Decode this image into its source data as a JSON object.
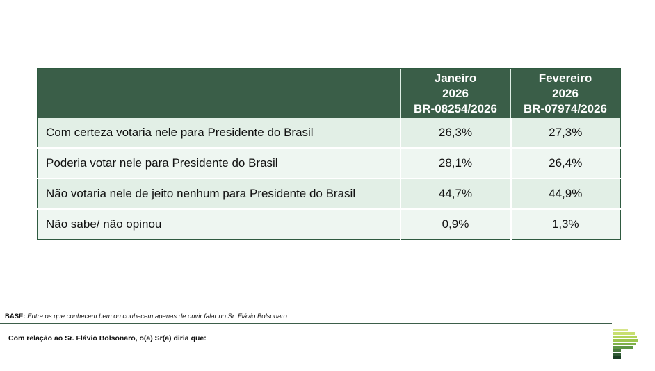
{
  "table": {
    "headers": [
      {
        "line1": "",
        "line2": "",
        "line3": ""
      },
      {
        "line1": "Janeiro",
        "line2": "2026",
        "line3": "BR-08254/2026"
      },
      {
        "line1": "Fevereiro",
        "line2": "2026",
        "line3": "BR-07974/2026"
      }
    ],
    "rows": [
      {
        "label": "Com certeza votaria nele para Presidente do Brasil",
        "jan": "26,3%",
        "fev": "27,3%"
      },
      {
        "label": "Poderia votar nele para Presidente do Brasil",
        "jan": "28,1%",
        "fev": "26,4%"
      },
      {
        "label": "Não votaria nele de jeito nenhum para Presidente do Brasil",
        "jan": "44,7%",
        "fev": "44,9%"
      },
      {
        "label": "Não sabe/ não opinou",
        "jan": "0,9%",
        "fev": "1,3%"
      }
    ]
  },
  "footer": {
    "base_label": "BASE:",
    "base_text": "Entre os que conhecem bem ou conhecem apenas de ouvir falar no Sr. Flávio Bolsonaro",
    "question": "Com relação ao Sr. Flávio Bolsonaro, o(a) Sr(a) diria que:"
  },
  "colors": {
    "header": "#3a5e48",
    "row_odd": "#e2efe6",
    "row_even": "#eef6f1"
  },
  "logo": {
    "icon": "striped-p-logo"
  }
}
